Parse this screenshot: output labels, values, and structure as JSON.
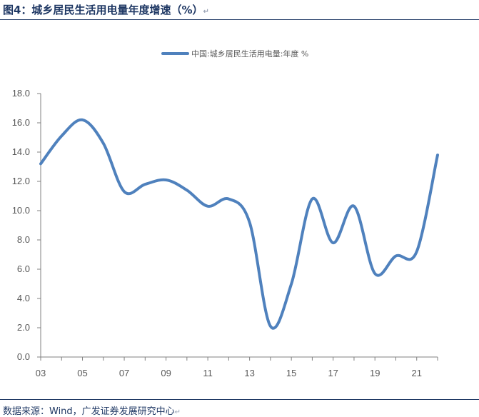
{
  "figure": {
    "title": "图4：城乡居民生活用电量年度增速（%）",
    "title_mark": "↵",
    "source": "数据来源：Wind，广发证券发展研究中心",
    "source_mark": "↵"
  },
  "chart_data": {
    "type": "line",
    "title": "",
    "xlabel": "",
    "ylabel": "",
    "x_tick_labels": [
      "03",
      "05",
      "07",
      "09",
      "11",
      "13",
      "15",
      "17",
      "19",
      "21"
    ],
    "y_tick_labels": [
      "0.0",
      "2.0",
      "4.0",
      "6.0",
      "8.0",
      "10.0",
      "12.0",
      "14.0",
      "16.0",
      "18.0"
    ],
    "ylim": [
      0,
      18
    ],
    "xlim": [
      2003,
      2022
    ],
    "grid": false,
    "legend_position": "top-center",
    "series": [
      {
        "name": "中国:城乡居民生活用电量:年度 %",
        "color": "#4f81bd",
        "x": [
          2003,
          2004,
          2005,
          2006,
          2007,
          2008,
          2009,
          2010,
          2011,
          2012,
          2013,
          2014,
          2015,
          2016,
          2017,
          2018,
          2019,
          2020,
          2021,
          2022
        ],
        "y": [
          13.2,
          15.1,
          16.2,
          14.6,
          11.3,
          11.8,
          12.1,
          11.4,
          10.3,
          10.8,
          9.2,
          2.1,
          5.0,
          10.8,
          7.8,
          10.3,
          5.7,
          6.9,
          7.2,
          13.8
        ]
      }
    ]
  }
}
